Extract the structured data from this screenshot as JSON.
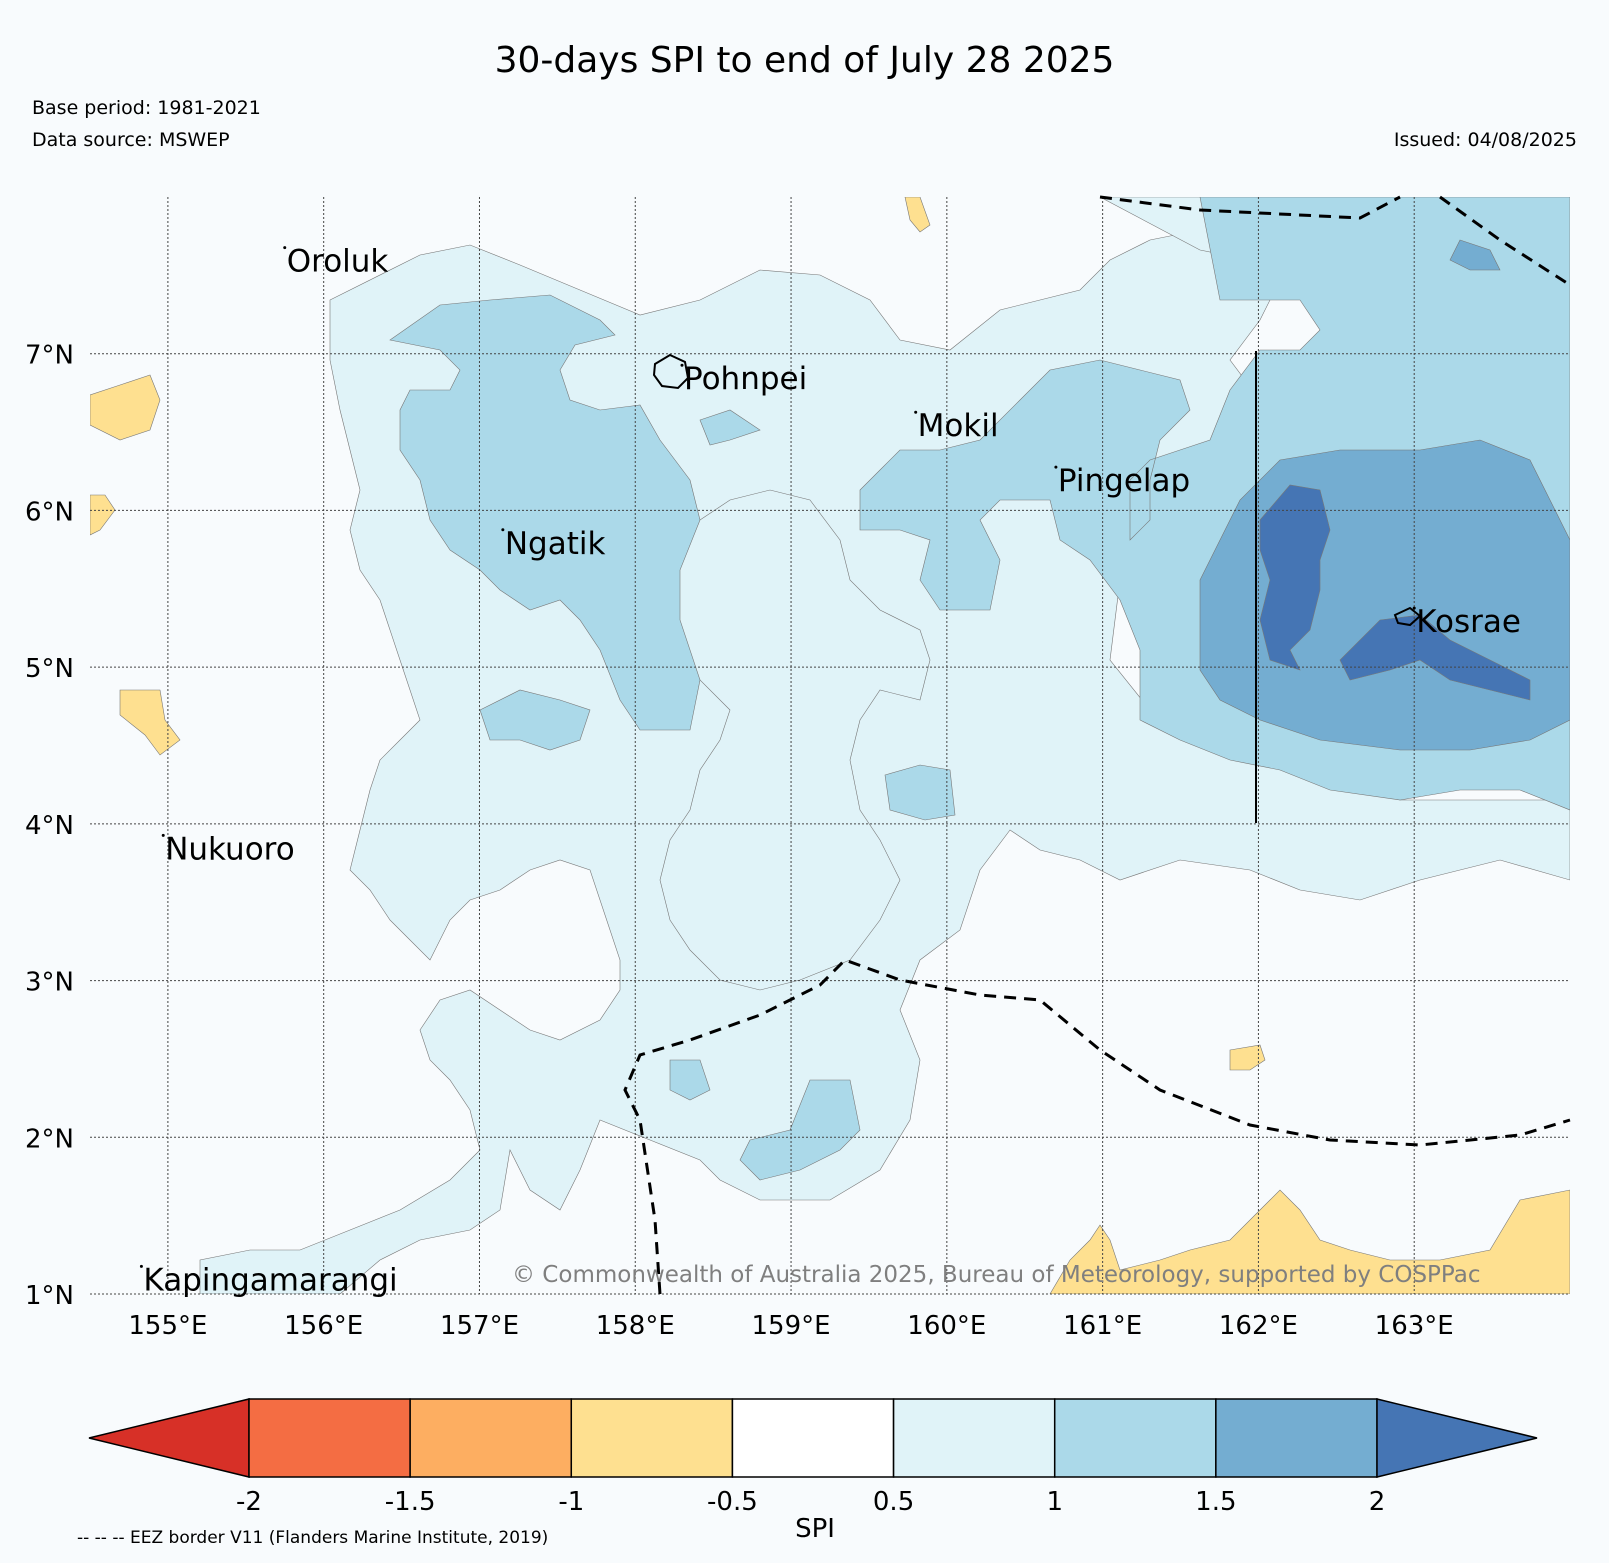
{
  "header": {
    "title": "30-days SPI to end of July 28 2025",
    "base_period": "Base period: 1981-2021",
    "data_source": "Data source: MSWEP",
    "issued": "Issued: 04/08/2025"
  },
  "map": {
    "lon_range": [
      154.5,
      164.0
    ],
    "lat_range": [
      1.0,
      8.0
    ],
    "lon_ticks": [
      "155°E",
      "156°E",
      "157°E",
      "158°E",
      "159°E",
      "160°E",
      "161°E",
      "162°E",
      "163°E"
    ],
    "lat_ticks": [
      "7°N",
      "6°N",
      "5°N",
      "4°N",
      "3°N",
      "2°N",
      "1°N"
    ],
    "places": [
      {
        "name": "Oroluk",
        "lon": 155.75,
        "lat": 7.6
      },
      {
        "name": "Pohnpei",
        "lon": 158.3,
        "lat": 6.85
      },
      {
        "name": "Mokil",
        "lon": 159.8,
        "lat": 6.55
      },
      {
        "name": "Pingelap",
        "lon": 160.7,
        "lat": 6.2
      },
      {
        "name": "Ngatik",
        "lon": 157.15,
        "lat": 5.8
      },
      {
        "name": "Kosrae",
        "lon": 163.0,
        "lat": 5.3
      },
      {
        "name": "Nukuoro",
        "lon": 154.97,
        "lat": 3.85
      },
      {
        "name": "Kapingamarangi",
        "lon": 154.83,
        "lat": 1.1
      }
    ],
    "copyright": "© Commonwealth of Australia 2025, Bureau of Meteorology, supported by COSPPac",
    "eez_note": "-- -- -- EEZ border V11 (Flanders Marine Institute, 2019)"
  },
  "colorbar": {
    "label": "SPI",
    "ticks": [
      "-2",
      "-1.5",
      "-1",
      "-0.5",
      "0.5",
      "1",
      "1.5",
      "2"
    ],
    "colors": [
      "#d73027",
      "#f46d43",
      "#fdae61",
      "#fee090",
      "#ffffff",
      "#e0f3f8",
      "#abd9e9",
      "#74add1",
      "#4575b4"
    ]
  }
}
